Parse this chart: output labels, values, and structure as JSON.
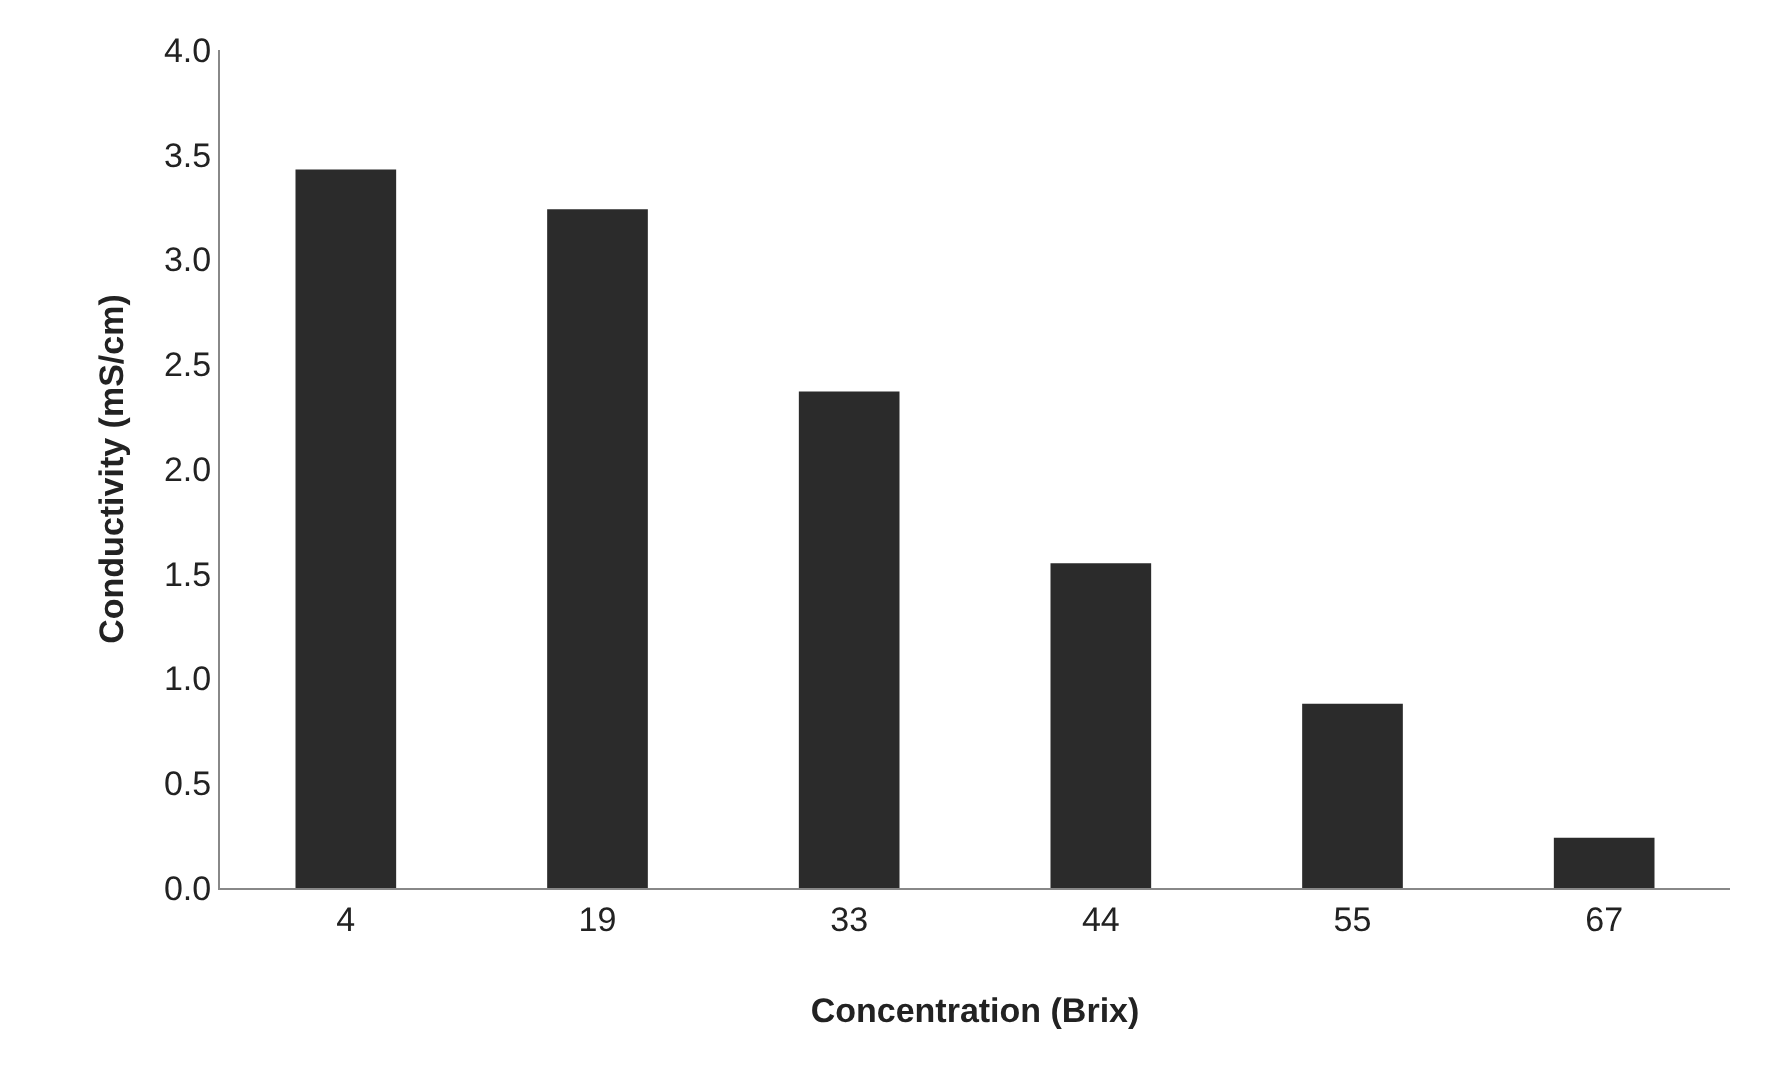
{
  "chart_data": {
    "type": "bar",
    "xlabel": "Concentration (Brix)",
    "ylabel": "Conductivity (mS/cm)",
    "categories": [
      "4",
      "19",
      "33",
      "44",
      "55",
      "67"
    ],
    "values": [
      3.43,
      3.24,
      2.37,
      1.55,
      0.88,
      0.24
    ],
    "color": "#2b2b2b",
    "ylim": [
      0,
      4.0
    ],
    "yticks": [
      {
        "value": 0,
        "label": "0.0"
      },
      {
        "value": 0.5,
        "label": "0.5"
      },
      {
        "value": 1,
        "label": "1.0"
      },
      {
        "value": 1.5,
        "label": "1.5"
      },
      {
        "value": 2,
        "label": "2.0"
      },
      {
        "value": 2.5,
        "label": "2.5"
      },
      {
        "value": 3,
        "label": "3.0"
      },
      {
        "value": 3.5,
        "label": "3.5"
      },
      {
        "value": 4,
        "label": "4.0"
      }
    ]
  }
}
